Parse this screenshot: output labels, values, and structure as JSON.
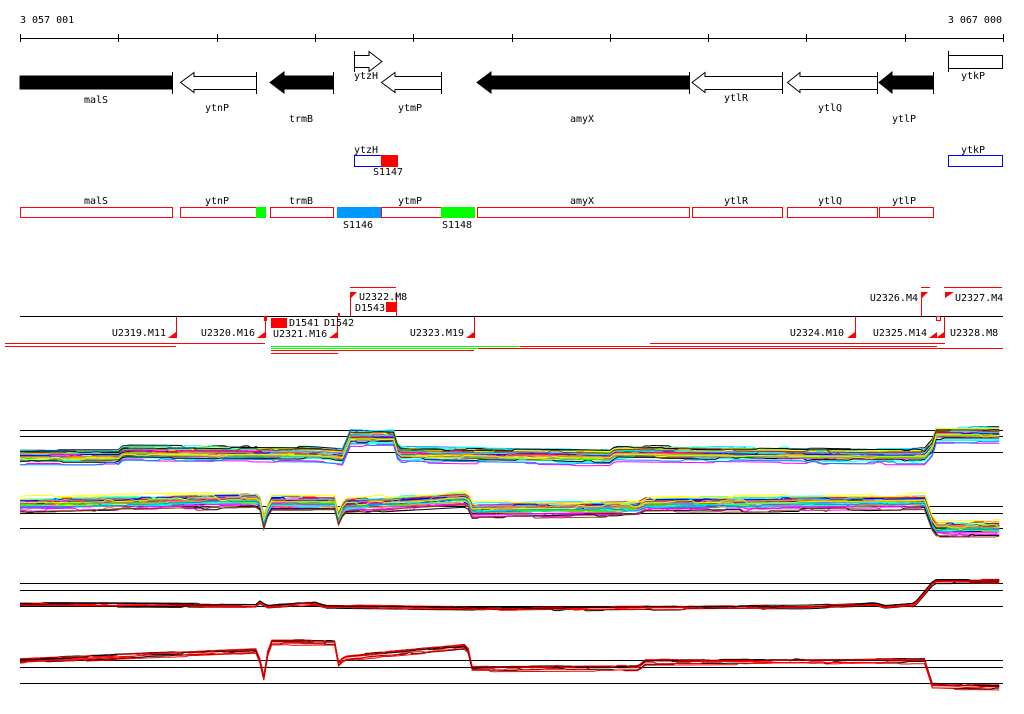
{
  "ruler": {
    "start_label": "3 057 001",
    "end_label": "3 067 000"
  },
  "genes": {
    "malS": "malS",
    "ytnP": "ytnP",
    "trmB": "trmB",
    "ytzH": "ytzH",
    "ytmP": "ytmP",
    "amyX": "amyX",
    "ytlR": "ytlR",
    "ytlQ": "ytlQ",
    "ytlP": "ytlP",
    "ytkP": "ytkP"
  },
  "segments": {
    "S1146": "S1146",
    "S1147": "S1147",
    "S1148": "S1148"
  },
  "transcripts": {
    "U2319": "U2319.M11",
    "U2320": "U2320.M16",
    "U2321": "U2321.M16",
    "U2322": "U2322.M8",
    "U2323": "U2323.M19",
    "U2324": "U2324.M10",
    "U2325": "U2325.M14",
    "U2326": "U2326.M4",
    "U2327": "U2327.M4",
    "U2328": "U2328.M8",
    "D1541": "D1541",
    "D1542": "D1542",
    "D1543": "D1543"
  },
  "colors": {
    "gene_fill": "#000000",
    "orf_outline": "#ff0000",
    "blue": "#0000ff",
    "seg_blue": "#0099ff",
    "seg_green": "#00ff00",
    "red": "#ff0000"
  },
  "chart_data": {
    "type": "line",
    "x_unit": "bp offset from 3 057 001",
    "xlim": [
      0,
      9999
    ],
    "panels": [
      {
        "name": "expression-panel-1",
        "series_count": 40,
        "multicolor": true,
        "ref_levels": [
          73,
          62,
          33
        ],
        "profile": [
          [
            0,
            27
          ],
          [
            1000,
            27
          ],
          [
            1050,
            35
          ],
          [
            3000,
            32
          ],
          [
            3300,
            28
          ],
          [
            3340,
            62
          ],
          [
            3800,
            62
          ],
          [
            3850,
            32
          ],
          [
            6000,
            27
          ],
          [
            6050,
            34
          ],
          [
            8700,
            29
          ],
          [
            9200,
            29
          ],
          [
            9280,
            45
          ],
          [
            9320,
            68
          ],
          [
            9999,
            68
          ]
        ]
      },
      {
        "name": "expression-panel-2",
        "series_count": 40,
        "multicolor": true,
        "ref_levels": [
          56,
          46,
          24
        ],
        "profile": [
          [
            0,
            60
          ],
          [
            2400,
            66
          ],
          [
            2460,
            60
          ],
          [
            2490,
            22
          ],
          [
            2530,
            62
          ],
          [
            3200,
            62
          ],
          [
            3240,
            40
          ],
          [
            3300,
            58
          ],
          [
            4550,
            68
          ],
          [
            4600,
            52
          ],
          [
            6300,
            55
          ],
          [
            6350,
            60
          ],
          [
            9200,
            64
          ],
          [
            9300,
            26
          ],
          [
            9999,
            26
          ]
        ]
      },
      {
        "name": "expression-panel-3",
        "series_count": 8,
        "multicolor": false,
        "ref_levels": [
          76,
          64,
          35
        ],
        "profile": [
          [
            0,
            38
          ],
          [
            2400,
            36
          ],
          [
            2450,
            44
          ],
          [
            2500,
            34
          ],
          [
            3000,
            40
          ],
          [
            3100,
            34
          ],
          [
            5000,
            30
          ],
          [
            8000,
            33
          ],
          [
            8700,
            38
          ],
          [
            8800,
            33
          ],
          [
            9100,
            38
          ],
          [
            9300,
            80
          ],
          [
            9999,
            80
          ]
        ]
      },
      {
        "name": "expression-panel-4",
        "series_count": 8,
        "multicolor": false,
        "ref_levels": [
          57,
          47,
          24
        ],
        "profile": [
          [
            0,
            56
          ],
          [
            2400,
            70
          ],
          [
            2470,
            45
          ],
          [
            2490,
            18
          ],
          [
            2530,
            82
          ],
          [
            3200,
            82
          ],
          [
            3240,
            52
          ],
          [
            3300,
            60
          ],
          [
            4550,
            76
          ],
          [
            4600,
            45
          ],
          [
            6300,
            46
          ],
          [
            6350,
            54
          ],
          [
            9200,
            56
          ],
          [
            9280,
            20
          ],
          [
            9999,
            18
          ]
        ]
      }
    ]
  }
}
